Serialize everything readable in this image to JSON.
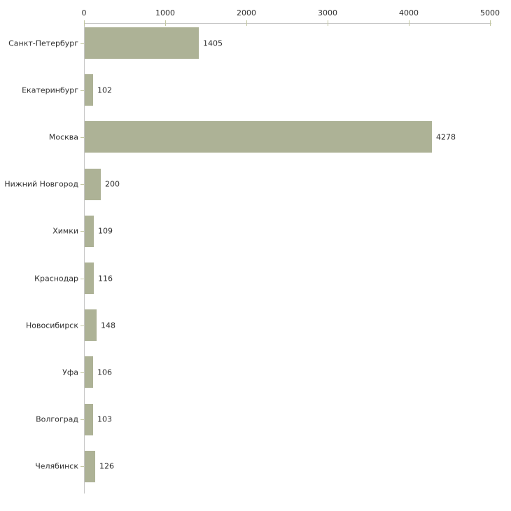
{
  "chart_data": {
    "type": "bar",
    "orientation": "horizontal",
    "title": "",
    "xlabel": "",
    "ylabel": "",
    "categories": [
      "Санкт-Петербург",
      "Екатеринбург",
      "Москва",
      "Нижний Новгород",
      "Химки",
      "Краснодар",
      "Новосибирск",
      "Уфа",
      "Волгоград",
      "Челябинск"
    ],
    "values": [
      1405,
      102,
      4278,
      200,
      109,
      116,
      148,
      106,
      103,
      126
    ],
    "value_labels": [
      "1405",
      "102",
      "4278",
      "200",
      "109",
      "116",
      "148",
      "106",
      "103",
      "126"
    ],
    "xlim": [
      0,
      5000
    ],
    "x_ticks": [
      0,
      1000,
      2000,
      3000,
      4000,
      5000
    ],
    "x_tick_labels": [
      "0",
      "1000",
      "2000",
      "3000",
      "4000",
      "5000"
    ],
    "x_axis_position": "top",
    "grid": false,
    "legend": false,
    "colors": {
      "bar_fill": "#adb296",
      "axis_line": "#c6c6c6",
      "tick_mark": "#c3c7a2",
      "text": "#2e2e2e",
      "background": "#ffffff"
    }
  }
}
